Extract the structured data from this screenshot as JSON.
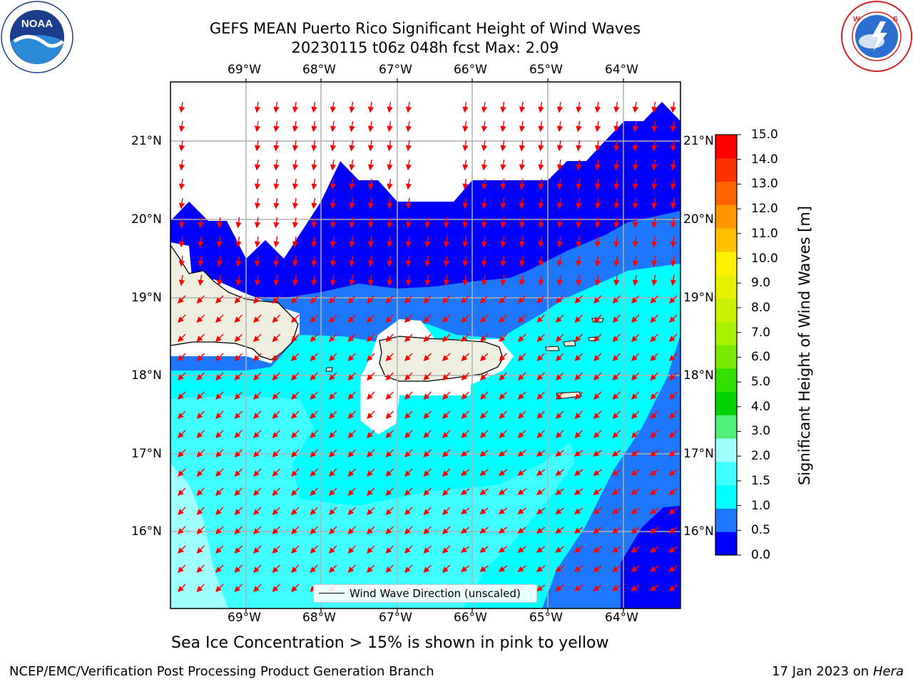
{
  "header": {
    "title_line1": "GEFS MEAN Puerto Rico Significant Height of Wind Waves",
    "title_line2": "20230115 t06z 048h fcst   Max: 2.09"
  },
  "logos": {
    "noaa_text": "NOAA",
    "noaa_ring": "NATIONAL OCEANIC AND ATMOSPHERIC ADMINISTRATION · U.S. DEPARTMENT OF COMMERCE",
    "nws_ring": "NATIONAL WEATHER SERVICE"
  },
  "map": {
    "lon_labels": [
      "69°W",
      "68°W",
      "67°W",
      "66°W",
      "65°W",
      "64°W"
    ],
    "lat_labels": [
      "21°N",
      "20°N",
      "19°N",
      "18°N",
      "17°N",
      "16°N"
    ],
    "legend_label": "Wind Wave Direction (unscaled)",
    "arrow_color": "#ff0000"
  },
  "colorbar": {
    "title": "Significant Height of Wind Waves [m]",
    "ticks": [
      "0.0",
      "0.5",
      "1.0",
      "1.5",
      "2.0",
      "3.0",
      "4.0",
      "5.0",
      "6.0",
      "7.0",
      "8.0",
      "9.0",
      "10.0",
      "11.0",
      "12.0",
      "13.0",
      "14.0",
      "15.0"
    ],
    "colors": [
      "#0000ff",
      "#1e78ff",
      "#00ffff",
      "#40ffff",
      "#a0ffff",
      "#50f078",
      "#00d200",
      "#32e100",
      "#78eb00",
      "#a8f000",
      "#c8f000",
      "#e6f000",
      "#fff000",
      "#ffc000",
      "#ff9600",
      "#ff6400",
      "#ff3200",
      "#ff0000"
    ]
  },
  "footer": {
    "note": "Sea Ice Concentration > 15% is shown in pink to yellow",
    "left": "NCEP/EMC/Verification Post Processing Product Generation Branch",
    "right_date": "17 Jan 2023 on",
    "right_machine": "Hera"
  }
}
